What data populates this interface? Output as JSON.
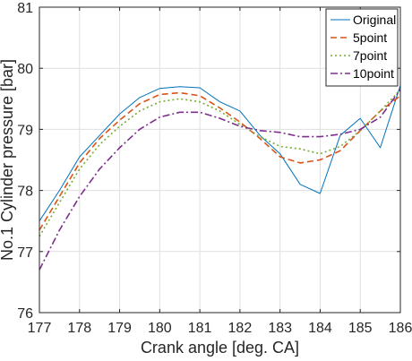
{
  "chart_data": {
    "type": "line",
    "xlabel": "Crank angle [deg. CA]",
    "ylabel": "No.1 Cylinder pressure [bar]",
    "xlim": [
      177,
      186
    ],
    "ylim": [
      76,
      81
    ],
    "xticks": [
      177,
      178,
      179,
      180,
      181,
      182,
      183,
      184,
      185,
      186
    ],
    "yticks": [
      76,
      77,
      78,
      79,
      80,
      81
    ],
    "grid": true,
    "legend_position": "top-right",
    "series": [
      {
        "name": "Original",
        "color": "#0072BD",
        "style": "solid",
        "x": [
          177,
          177.5,
          178,
          178.5,
          179,
          179.5,
          180,
          180.5,
          181,
          181.5,
          182,
          182.5,
          183,
          183.5,
          184,
          184.5,
          185,
          185.5,
          186
        ],
        "y": [
          77.5,
          78.0,
          78.55,
          78.9,
          79.25,
          79.52,
          79.67,
          79.7,
          79.68,
          79.45,
          79.3,
          78.9,
          78.6,
          78.1,
          77.95,
          78.9,
          79.18,
          78.7,
          79.72
        ]
      },
      {
        "name": "5point",
        "color": "#D95319",
        "style": "dashed",
        "x": [
          177,
          177.5,
          178,
          178.5,
          179,
          179.5,
          180,
          180.5,
          181,
          181.5,
          182,
          182.5,
          183,
          183.5,
          184,
          184.5,
          185,
          185.5,
          186
        ],
        "y": [
          77.35,
          77.9,
          78.45,
          78.85,
          79.15,
          79.42,
          79.57,
          79.6,
          79.55,
          79.35,
          79.12,
          78.85,
          78.55,
          78.45,
          78.5,
          78.65,
          78.98,
          79.3,
          79.55
        ]
      },
      {
        "name": "7point",
        "color": "#77AC30",
        "style": "dotted",
        "x": [
          177,
          177.5,
          178,
          178.5,
          179,
          179.5,
          180,
          180.5,
          181,
          181.5,
          182,
          182.5,
          183,
          183.5,
          184,
          184.5,
          185,
          185.5,
          186
        ],
        "y": [
          77.25,
          77.8,
          78.35,
          78.75,
          79.05,
          79.3,
          79.45,
          79.5,
          79.45,
          79.3,
          79.08,
          78.88,
          78.72,
          78.68,
          78.6,
          78.72,
          78.98,
          79.3,
          79.65
        ]
      },
      {
        "name": "10point",
        "color": "#7E2F8E",
        "style": "dashdot",
        "x": [
          177,
          177.5,
          178,
          178.5,
          179,
          179.5,
          180,
          180.5,
          181,
          181.5,
          182,
          182.5,
          183,
          183.5,
          184,
          184.5,
          185,
          185.5,
          186
        ],
        "y": [
          76.7,
          77.35,
          77.9,
          78.35,
          78.7,
          79.0,
          79.2,
          79.28,
          79.28,
          79.18,
          79.05,
          78.98,
          78.95,
          78.88,
          78.88,
          78.92,
          79.0,
          79.2,
          79.65
        ]
      }
    ]
  }
}
